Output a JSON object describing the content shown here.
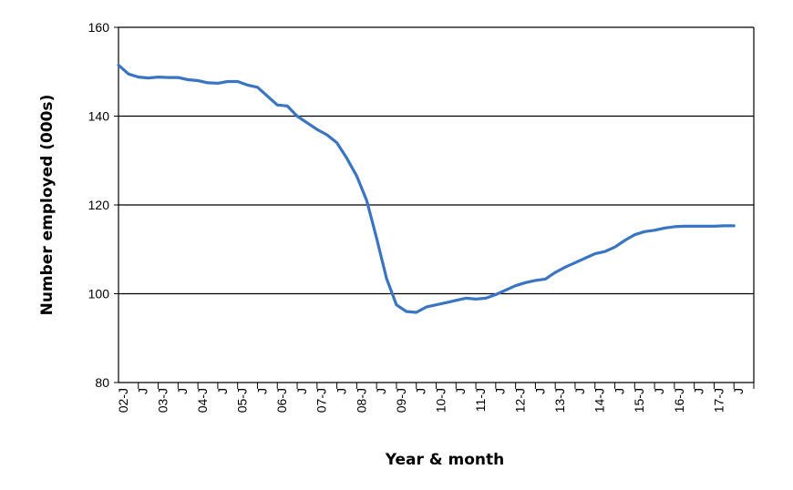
{
  "chart_data": {
    "type": "line",
    "title": "",
    "xlabel": "Year & month",
    "ylabel": "Number employed (000s)",
    "ylim": [
      80,
      160
    ],
    "yticks": [
      80,
      100,
      120,
      140,
      160
    ],
    "grid": "horizontal major gridlines",
    "legend": "none",
    "line_color": "#3a75c4",
    "x_tick_labels": [
      "02-J",
      "J",
      "03-J",
      "J",
      "04-J",
      "J",
      "05-J",
      "J",
      "06-J",
      "J",
      "07-J",
      "J",
      "08-J",
      "J",
      "09-J",
      "J",
      "10-J",
      "J",
      "11-J",
      "J",
      "12-J",
      "J",
      "13-J",
      "J",
      "14-J",
      "J",
      "15-J",
      "J",
      "16-J",
      "J",
      "17-J",
      "J"
    ],
    "x": [
      "2002-01",
      "2002-04",
      "2002-07",
      "2002-10",
      "2003-01",
      "2003-04",
      "2003-07",
      "2003-10",
      "2004-01",
      "2004-04",
      "2004-07",
      "2004-10",
      "2005-01",
      "2005-04",
      "2005-07",
      "2005-10",
      "2006-01",
      "2006-04",
      "2006-07",
      "2006-10",
      "2007-01",
      "2007-04",
      "2007-07",
      "2007-10",
      "2008-01",
      "2008-04",
      "2008-07",
      "2008-10",
      "2009-01",
      "2009-04",
      "2009-07",
      "2009-10",
      "2010-01",
      "2010-04",
      "2010-07",
      "2010-10",
      "2011-01",
      "2011-04",
      "2011-07",
      "2011-10",
      "2012-01",
      "2012-04",
      "2012-07",
      "2012-10",
      "2013-01",
      "2013-04",
      "2013-07",
      "2013-10",
      "2014-01",
      "2014-04",
      "2014-07",
      "2014-10",
      "2015-01",
      "2015-04",
      "2015-07",
      "2015-10",
      "2016-01",
      "2016-04",
      "2016-07",
      "2016-10",
      "2017-01",
      "2017-04",
      "2017-07"
    ],
    "series": [
      {
        "values": [
          151.5,
          149.5,
          148.8,
          148.6,
          148.8,
          148.7,
          148.7,
          148.2,
          148.0,
          147.5,
          147.4,
          147.8,
          147.8,
          147.0,
          146.5,
          144.5,
          142.5,
          142.3,
          140.0,
          138.5,
          137.0,
          135.8,
          134.0,
          130.5,
          126.5,
          121.0,
          112.5,
          103.5,
          97.5,
          96.0,
          95.8,
          97.0,
          97.5,
          98.0,
          98.5,
          99.0,
          98.8,
          99.0,
          99.8,
          100.8,
          101.8,
          102.5,
          103.0,
          103.3,
          104.8,
          106.0,
          107.0,
          108.0,
          109.0,
          109.5,
          110.5,
          112.0,
          113.3,
          114.0,
          114.3,
          114.8,
          115.1,
          115.2,
          115.2,
          115.2,
          115.2,
          115.3,
          115.3
        ]
      }
    ]
  }
}
